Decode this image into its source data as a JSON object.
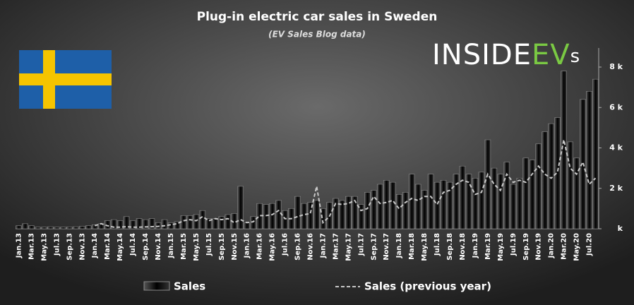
{
  "chart_data": {
    "type": "bar",
    "title": "Plug-in electric car sales in Sweden",
    "subtitle": "(EV Sales Blog data)",
    "logo": {
      "main": "INSIDE",
      "accent": "EV",
      "tail": "s"
    },
    "categories": [
      "Jan.13",
      null,
      "Mar.13",
      null,
      "May.13",
      null,
      "Jul.13",
      null,
      "Sep.13",
      null,
      "Nov.13",
      null,
      "Jan.14",
      null,
      "Mar.14",
      null,
      "May.14",
      null,
      "Jul.14",
      null,
      "Sep.14",
      null,
      "Nov.14",
      null,
      "Jan.15",
      null,
      "Mar.15",
      null,
      "May.15",
      null,
      "Jul.15",
      null,
      "Sep.15",
      null,
      "Nov.15",
      null,
      "Jan.16",
      null,
      "Mar.16",
      null,
      "May.16",
      null,
      "Jul.16",
      null,
      "Sep.16",
      null,
      "Nov.16",
      null,
      "Jan.17",
      null,
      "Mar.17",
      null,
      "May.17",
      null,
      "Jul.17",
      null,
      "Sep.17",
      null,
      "Nov.17",
      null,
      "Jan.18",
      null,
      "Mar.18",
      null,
      "May.18",
      null,
      "Jul.18",
      null,
      "Sep.18",
      null,
      "Nov.18",
      null,
      "Jan.19",
      null,
      "Mar.19",
      null,
      "May.19",
      null,
      "Jul.19",
      null,
      "Sep.19",
      null,
      "Nov.19",
      null,
      "Jan.20",
      null,
      "Mar.20",
      null,
      "May.20",
      null,
      "Jul.20",
      null
    ],
    "series": [
      {
        "name": "Sales",
        "color": "#141414",
        "values": [
          150,
          250,
          150,
          80,
          80,
          100,
          80,
          80,
          90,
          100,
          120,
          150,
          200,
          250,
          400,
          450,
          400,
          600,
          400,
          500,
          450,
          500,
          300,
          450,
          300,
          350,
          650,
          650,
          700,
          900,
          500,
          500,
          600,
          700,
          750,
          2100,
          300,
          600,
          1250,
          1200,
          1250,
          1400,
          900,
          1000,
          1600,
          1250,
          1300,
          1400,
          1000,
          1300,
          1500,
          1400,
          1600,
          1600,
          1200,
          1800,
          1900,
          2200,
          2400,
          2300,
          1700,
          1800,
          2700,
          2200,
          1900,
          2700,
          2300,
          2400,
          2300,
          2700,
          3100,
          2700,
          2500,
          2800,
          4400,
          3000,
          2700,
          3300,
          2200,
          2500,
          3500,
          3400,
          4200,
          4800,
          5200,
          5500,
          7800,
          4300,
          3500,
          6400,
          6800,
          7400
        ]
      },
      {
        "name": "Sales (previous year)",
        "color": "#c8c8c8",
        "values": [
          null,
          null,
          null,
          null,
          null,
          null,
          null,
          null,
          null,
          null,
          null,
          null,
          150,
          250,
          150,
          80,
          80,
          100,
          80,
          80,
          90,
          100,
          120,
          150,
          200,
          250,
          400,
          450,
          400,
          600,
          400,
          500,
          450,
          500,
          300,
          450,
          300,
          350,
          650,
          650,
          700,
          900,
          500,
          500,
          600,
          700,
          750,
          2100,
          300,
          600,
          1250,
          1200,
          1250,
          1400,
          900,
          1000,
          1600,
          1250,
          1300,
          1400,
          1000,
          1300,
          1500,
          1400,
          1600,
          1600,
          1200,
          1800,
          1900,
          2200,
          2400,
          2300,
          1700,
          1800,
          2700,
          2200,
          1900,
          2700,
          2300,
          2400,
          2300,
          2700,
          3100,
          2700,
          2500,
          2800,
          4400,
          3000,
          2700,
          3300,
          2200,
          2500
        ]
      }
    ],
    "ylim": [
      0,
      8000
    ],
    "yticks": [
      {
        "value": 0,
        "label": "k"
      },
      {
        "value": 2000,
        "label": "2 k"
      },
      {
        "value": 4000,
        "label": "4 k"
      },
      {
        "value": 6000,
        "label": "6 k"
      },
      {
        "value": 8000,
        "label": "8 k"
      }
    ],
    "grid": false
  }
}
